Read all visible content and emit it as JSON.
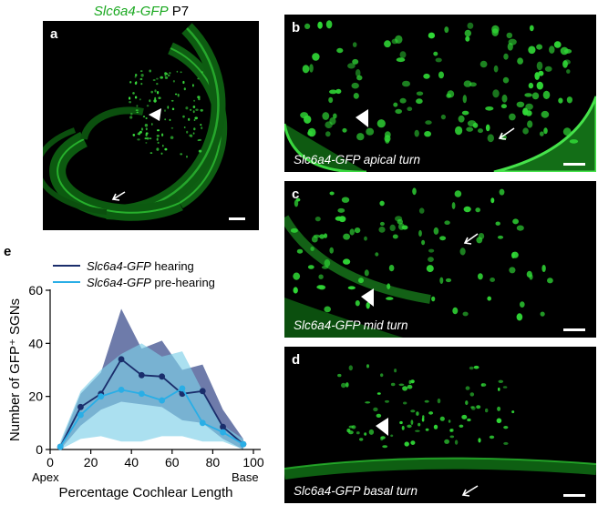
{
  "figure": {
    "title_gene": "Slc6a4-GFP",
    "title_age": "P7"
  },
  "panels": {
    "a": {
      "label": "a"
    },
    "b": {
      "label": "b",
      "caption": "Slc6a4-GFP apical turn"
    },
    "c": {
      "label": "c",
      "caption": "Slc6a4-GFP mid turn"
    },
    "d": {
      "label": "d",
      "caption": "Slc6a4-GFP basal turn"
    },
    "e": {
      "label": "e"
    }
  },
  "colors": {
    "gfp": "#22e02a",
    "hearing": "#1a2d6b",
    "pre_hearing": "#29aee6",
    "hearing_band": "#4a5a95",
    "pre_hearing_band": "#7ecfe8"
  },
  "chart_data": {
    "type": "line",
    "xlabel": "Percentage Cochlear Length",
    "ylabel": "Number of GFP⁺ SGNs",
    "x_ticks": [
      "0",
      "20",
      "40",
      "60",
      "80",
      "100"
    ],
    "y_ticks": [
      "0",
      "20",
      "40",
      "60"
    ],
    "x_end_labels": {
      "left": "Apex",
      "right": "Base"
    },
    "xlim": [
      0,
      100
    ],
    "ylim": [
      0,
      60
    ],
    "legend_position": "top-left",
    "x": [
      5,
      15,
      25,
      35,
      45,
      55,
      65,
      75,
      85,
      95
    ],
    "series": [
      {
        "name_italic": "Slc6a4-GFP",
        "name_suffix": " hearing",
        "values": [
          1,
          16,
          21,
          34,
          28,
          27.5,
          21,
          22,
          8.5,
          2
        ],
        "lower": [
          0,
          9,
          15,
          18,
          17,
          16,
          11,
          10,
          4,
          0
        ],
        "upper": [
          2,
          21,
          29,
          53,
          38,
          41,
          30,
          32,
          15,
          4
        ]
      },
      {
        "name_italic": "Slc6a4-GFP",
        "name_suffix": " pre-hearing",
        "values": [
          1,
          13,
          20,
          22.5,
          21,
          18.5,
          23,
          10,
          6.5,
          2
        ],
        "lower": [
          0,
          4,
          5,
          3,
          3,
          5,
          5,
          3,
          3,
          0
        ],
        "upper": [
          3,
          22,
          30,
          36,
          40,
          35,
          37,
          22,
          9,
          4
        ]
      }
    ]
  }
}
